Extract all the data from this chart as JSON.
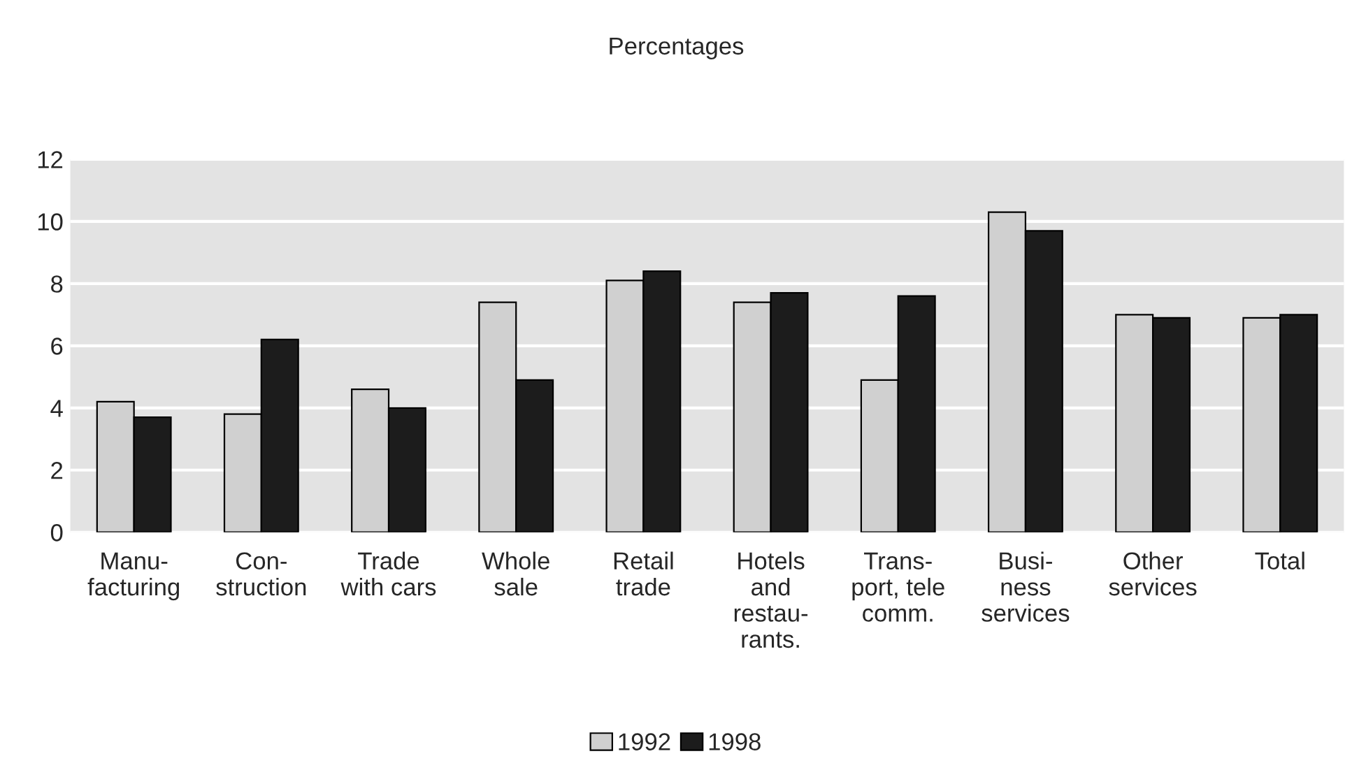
{
  "chart_data": {
    "type": "bar",
    "title": "Percentages",
    "categories": [
      "Manu-\nfacturing",
      "Con-\nstruction",
      "Trade\nwith cars",
      "Whole\nsale",
      "Retail\ntrade",
      "Hotels\nand\nrestau-\nrants.",
      "Trans-\nport, tele\ncomm.",
      "Busi-\nness\nservices",
      "Other\nservices",
      "Total"
    ],
    "series": [
      {
        "name": "1992",
        "color": "#d0d0d0",
        "values": [
          4.2,
          3.8,
          4.6,
          7.4,
          8.1,
          7.4,
          4.9,
          10.3,
          7.0,
          6.9
        ]
      },
      {
        "name": "1998",
        "color": "#1c1c1c",
        "values": [
          3.7,
          6.2,
          4.0,
          4.9,
          8.4,
          7.7,
          7.6,
          9.7,
          6.9,
          7.0
        ]
      }
    ],
    "ylim": [
      0,
      12
    ],
    "yticks": [
      0,
      2,
      4,
      6,
      8,
      10,
      12
    ],
    "grid": "y",
    "legend": "bottom"
  }
}
